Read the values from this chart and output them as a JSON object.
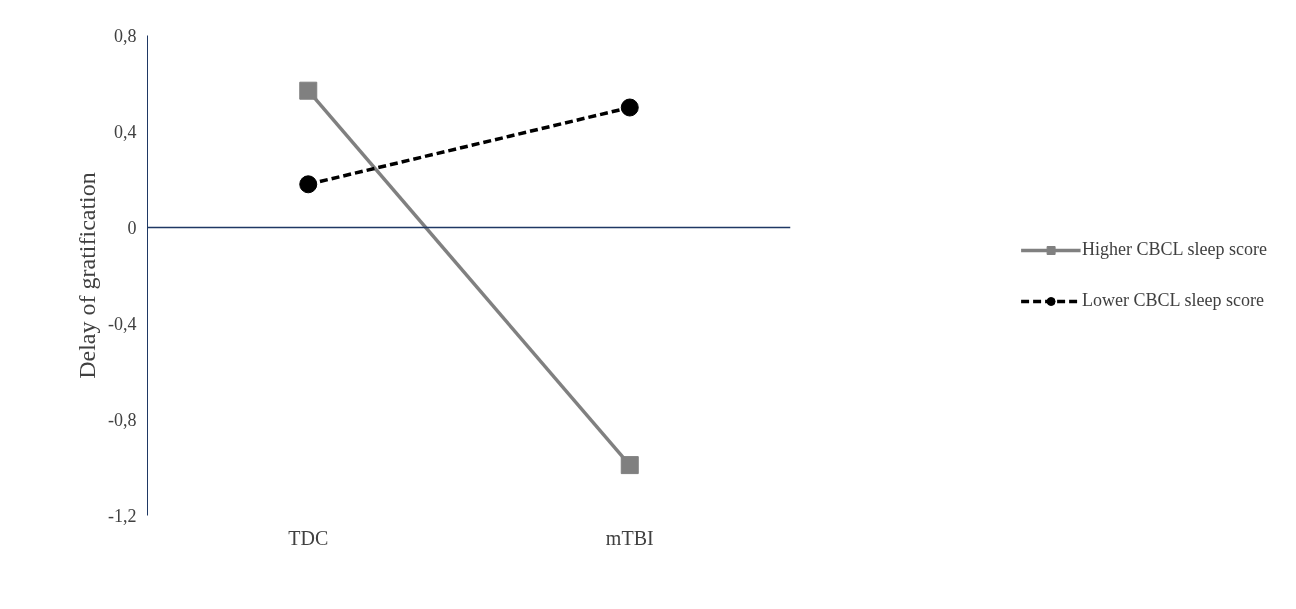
{
  "chart_data": {
    "type": "line",
    "ylabel": "Delay of gratification",
    "categories": [
      "TDC",
      "mTBI"
    ],
    "series": [
      {
        "name": "Higher CBCL sleep score",
        "color": "#808080",
        "values": [
          0.57,
          -0.99
        ],
        "marker": "square",
        "line_style": "solid"
      },
      {
        "name": "Lower CBCL sleep score",
        "color": "#000000",
        "values": [
          0.18,
          0.5
        ],
        "marker": "circle",
        "line_style": "dashed"
      }
    ],
    "ylim": [
      -1.2,
      0.8
    ],
    "yticks": [
      {
        "value": -1.2,
        "label": "-1,2"
      },
      {
        "value": -0.8,
        "label": "-0,8"
      },
      {
        "value": -0.4,
        "label": "-0,4"
      },
      0,
      {
        "value": 0.4,
        "label": "0,4"
      },
      {
        "value": 0.8,
        "label": "0,8"
      }
    ],
    "ref_lines": [
      {
        "axis": "y",
        "value": 0,
        "color": "#1f3864"
      }
    ],
    "grid": false,
    "legend": "right"
  }
}
